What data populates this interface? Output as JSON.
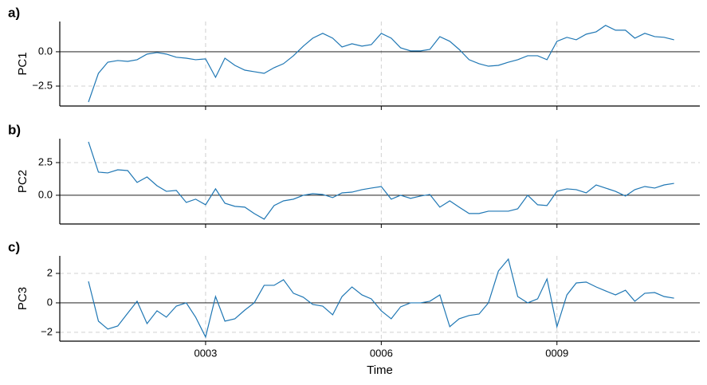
{
  "chart_data": [
    {
      "type": "line",
      "panel_label": "a)",
      "ylabel": "PC1",
      "color": "#1f77b4",
      "hline": 0,
      "grid": true,
      "x": [
        1,
        1.17,
        1.33,
        1.5,
        1.67,
        1.83,
        2,
        2.17,
        2.33,
        2.5,
        2.67,
        2.83,
        3,
        3.17,
        3.33,
        3.5,
        3.67,
        3.83,
        4,
        4.17,
        4.33,
        4.5,
        4.67,
        4.83,
        5,
        5.17,
        5.33,
        5.5,
        5.67,
        5.83,
        6,
        6.17,
        6.33,
        6.5,
        6.67,
        6.83,
        7,
        7.17,
        7.33,
        7.5,
        7.67,
        7.83,
        8,
        8.17,
        8.33,
        8.5,
        8.67,
        8.83,
        9,
        9.17,
        9.33,
        9.5,
        9.67,
        9.83,
        10,
        10.17,
        10.33,
        10.5,
        10.67,
        10.83,
        11
      ],
      "values": [
        -3.66,
        -1.57,
        -0.76,
        -0.64,
        -0.7,
        -0.58,
        -0.17,
        -0.06,
        -0.17,
        -0.4,
        -0.47,
        -0.58,
        -0.52,
        -1.86,
        -0.47,
        -0.99,
        -1.34,
        -1.45,
        -1.57,
        -1.16,
        -0.87,
        -0.29,
        0.41,
        0.99,
        1.34,
        0.99,
        0.35,
        0.58,
        0.41,
        0.52,
        1.34,
        0.99,
        0.29,
        0.06,
        0.06,
        0.17,
        1.1,
        0.76,
        0.17,
        -0.58,
        -0.87,
        -1.05,
        -0.99,
        -0.76,
        -0.58,
        -0.29,
        -0.29,
        -0.58,
        0.76,
        1.05,
        0.87,
        1.28,
        1.45,
        1.92,
        1.57,
        1.57,
        0.99,
        1.34,
        1.1,
        1.05,
        0.87
      ],
      "xlim": [
        0.51,
        11.44
      ],
      "ylim": [
        -3.95,
        2.2
      ],
      "yticks": [
        {
          "value": 0,
          "label": "0.0"
        },
        {
          "value": -2.5,
          "label": "−2.5"
        }
      ]
    },
    {
      "type": "line",
      "panel_label": "b)",
      "ylabel": "PC2",
      "color": "#1f77b4",
      "hline": 0,
      "grid": true,
      "x": [
        1,
        1.17,
        1.33,
        1.5,
        1.67,
        1.83,
        2,
        2.17,
        2.33,
        2.5,
        2.67,
        2.83,
        3,
        3.17,
        3.33,
        3.5,
        3.67,
        3.83,
        4,
        4.17,
        4.33,
        4.5,
        4.67,
        4.83,
        5,
        5.17,
        5.33,
        5.5,
        5.67,
        5.83,
        6,
        6.17,
        6.33,
        6.5,
        6.67,
        6.83,
        7,
        7.17,
        7.33,
        7.5,
        7.67,
        7.83,
        8,
        8.17,
        8.33,
        8.5,
        8.67,
        8.83,
        9,
        9.17,
        9.33,
        9.5,
        9.67,
        9.83,
        10,
        10.17,
        10.33,
        10.5,
        10.67,
        10.83,
        11
      ],
      "values": [
        4.09,
        1.77,
        1.71,
        1.95,
        1.89,
        0.98,
        1.4,
        0.73,
        0.3,
        0.37,
        -0.55,
        -0.3,
        -0.73,
        0.49,
        -0.61,
        -0.85,
        -0.91,
        -1.4,
        -1.83,
        -0.79,
        -0.43,
        -0.3,
        0,
        0.12,
        0.06,
        -0.18,
        0.18,
        0.24,
        0.43,
        0.55,
        0.67,
        -0.3,
        0,
        -0.24,
        -0.06,
        0.06,
        -0.91,
        -0.43,
        -0.91,
        -1.4,
        -1.4,
        -1.22,
        -1.22,
        -1.22,
        -1.04,
        0,
        -0.73,
        -0.79,
        0.3,
        0.49,
        0.43,
        0.18,
        0.79,
        0.55,
        0.3,
        -0.06,
        0.43,
        0.67,
        0.55,
        0.79,
        0.91
      ],
      "xlim": [
        0.51,
        11.44
      ],
      "ylim": [
        -2.2,
        4.33
      ],
      "yticks": [
        2.5,
        {
          "value": 0,
          "label": "0.0"
        }
      ]
    },
    {
      "type": "line",
      "panel_label": "c)",
      "ylabel": "PC3",
      "xlabel": "Time",
      "color": "#1f77b4",
      "hline": 0,
      "grid": true,
      "x": [
        1,
        1.17,
        1.33,
        1.5,
        1.67,
        1.83,
        2,
        2.17,
        2.33,
        2.5,
        2.67,
        2.83,
        3,
        3.17,
        3.33,
        3.5,
        3.67,
        3.83,
        4,
        4.17,
        4.33,
        4.5,
        4.67,
        4.83,
        5,
        5.17,
        5.33,
        5.5,
        5.67,
        5.83,
        6,
        6.17,
        6.33,
        6.5,
        6.67,
        6.83,
        7,
        7.17,
        7.33,
        7.5,
        7.67,
        7.83,
        8,
        8.17,
        8.33,
        8.5,
        8.67,
        8.83,
        9,
        9.17,
        9.33,
        9.5,
        9.67,
        9.83,
        10,
        10.17,
        10.33,
        10.5,
        10.67,
        10.83,
        11
      ],
      "values": [
        1.46,
        -1.24,
        -1.78,
        -1.57,
        -0.7,
        0.11,
        -1.41,
        -0.54,
        -0.97,
        -0.22,
        0,
        -0.97,
        -2.32,
        0.43,
        -1.24,
        -1.08,
        -0.49,
        0,
        1.19,
        1.19,
        1.57,
        0.65,
        0.38,
        -0.11,
        -0.22,
        -0.81,
        0.43,
        1.08,
        0.54,
        0.27,
        -0.54,
        -1.08,
        -0.27,
        0,
        0,
        0.11,
        0.54,
        -1.62,
        -1.08,
        -0.86,
        -0.76,
        0,
        2.16,
        2.97,
        0.43,
        0,
        0.27,
        1.62,
        -1.62,
        0.54,
        1.35,
        1.41,
        1.08,
        0.81,
        0.54,
        0.86,
        0.11,
        0.65,
        0.7,
        0.43,
        0.32
      ],
      "xlim": [
        0.51,
        11.44
      ],
      "ylim": [
        -2.6,
        3.19
      ],
      "xticks": [
        {
          "value": 3,
          "label": "0003"
        },
        {
          "value": 6,
          "label": "0006"
        },
        {
          "value": 9,
          "label": "0009"
        }
      ],
      "yticks": [
        2,
        0,
        {
          "value": -2,
          "label": "−2"
        }
      ]
    }
  ]
}
